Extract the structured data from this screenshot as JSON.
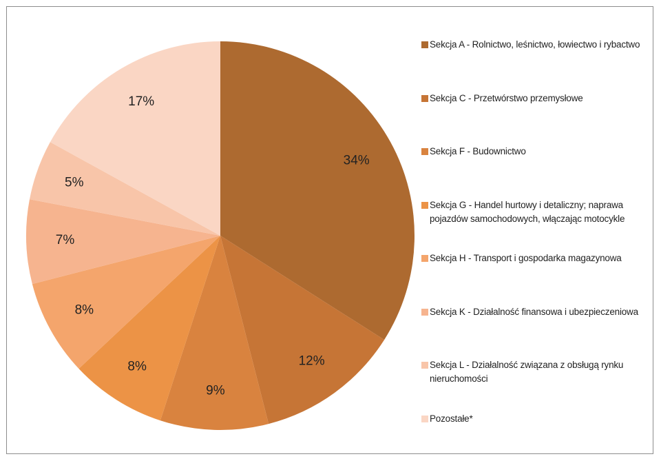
{
  "chart_data": {
    "type": "pie",
    "categories": [
      "Sekcja A - Rolnictwo, leśnictwo, łowiectwo i rybactwo",
      "Sekcja C - Przetwórstwo przemysłowe",
      "Sekcja F - Budownictwo",
      "Sekcja G - Handel hurtowy i detaliczny; naprawa pojazdów samochodowych, włączając motocykle",
      "Sekcja H - Transport i gospodarka magazynowa",
      "Sekcja K - Działalność finansowa i ubezpieczeniowa",
      "Sekcja L - Działalność związana z obsługą rynku nieruchomości",
      "Pozostałe*"
    ],
    "values": [
      34,
      12,
      9,
      8,
      8,
      7,
      5,
      17
    ],
    "value_labels": [
      "34%",
      "12%",
      "9%",
      "8%",
      "8%",
      "7%",
      "5%",
      "17%"
    ],
    "colors": [
      "#ad6a30",
      "#c67536",
      "#d9833f",
      "#ec9346",
      "#f4a56c",
      "#f6b48f",
      "#f8c5a9",
      "#fad6c4"
    ],
    "legend": "right"
  }
}
